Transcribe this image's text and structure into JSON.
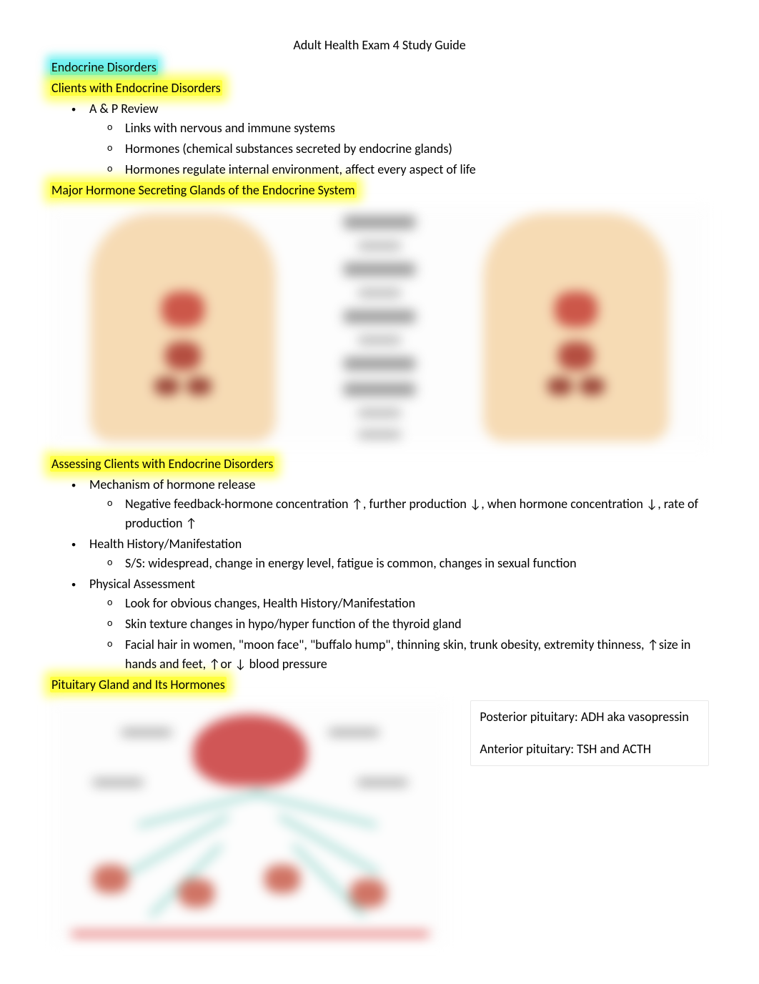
{
  "page": {
    "title": "Adult Health Exam 4 Study Guide"
  },
  "sections": {
    "main_heading": "Endocrine Disorders",
    "sub1": {
      "title": "Clients with Endocrine Disorders",
      "bullets": [
        {
          "text": "A & P Review",
          "subs": [
            "Links with nervous and immune systems",
            "Hormones (chemical substances secreted by endocrine glands)",
            "Hormones regulate internal environment, affect every aspect of life"
          ]
        }
      ]
    },
    "sub2": {
      "title": "Major Hormone Secreting Glands of the Endocrine System"
    },
    "sub3": {
      "title": "Assessing Clients with Endocrine Disorders",
      "bullets": [
        {
          "text": "Mechanism of hormone release",
          "subs": [
            "Negative feedback-hormone concentration ↑, further production ↓, when hormone concentration ↓, rate of production ↑"
          ]
        },
        {
          "text": "Health History/Manifestation",
          "subs": [
            "S/S: widespread, change in energy level, fatigue is common, changes in sexual function"
          ]
        },
        {
          "text": "Physical Assessment",
          "subs": [
            "Look for obvious changes, Health History/Manifestation",
            "Skin texture changes in hypo/hyper function of the thyroid gland",
            "Facial hair in women, \"moon face\", \"buffalo hump\", thinning skin, trunk obesity, extremity thinness, ↑size in hands and feet, ↑or ↓ blood pressure"
          ]
        }
      ]
    },
    "sub4": {
      "title": "Pituitary Gland and Its Hormones",
      "notes": {
        "line1": "Posterior pituitary: ADH aka vasopressin",
        "line2": "Anterior pituitary: TSH and ACTH"
      }
    }
  },
  "colors": {
    "highlight_cyan": "#00e6e6",
    "highlight_yellow": "#ffff00",
    "text": "#000000",
    "background": "#ffffff",
    "body_skin": "#f5d5a8",
    "organ_red": "#c43a2a",
    "arrow_teal": "#3bb5a5",
    "line_red": "#d62020"
  },
  "typography": {
    "font_family": "Calibri, Arial, sans-serif",
    "body_fontsize": 18,
    "title_fontsize": 18
  }
}
